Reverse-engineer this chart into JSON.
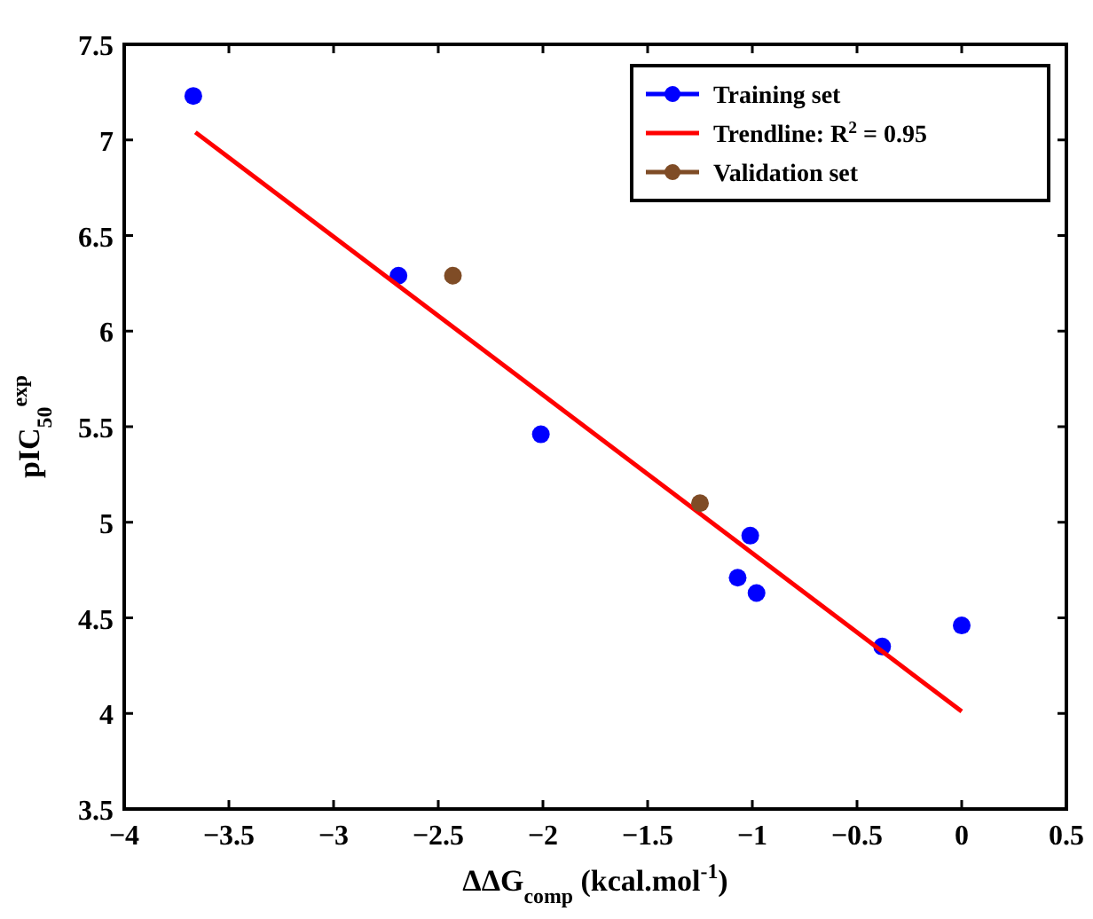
{
  "chart_data": {
    "type": "scatter",
    "xlabel": "ΔΔG$_{comp}$ (kcal.mol$^{-1}$)",
    "ylabel": "pIC$_{50}$$^{exp}$",
    "xlim": [
      -4,
      0.5
    ],
    "ylim": [
      3.5,
      7.5
    ],
    "xticks": [
      {
        "value": -4,
        "label": "−4"
      },
      {
        "value": -3.5,
        "label": "−3.5"
      },
      {
        "value": -3,
        "label": "−3"
      },
      {
        "value": -2.5,
        "label": "−2.5"
      },
      {
        "value": -2,
        "label": "−2"
      },
      {
        "value": -1.5,
        "label": "−1.5"
      },
      {
        "value": -1,
        "label": "−1"
      },
      {
        "value": -0.5,
        "label": "−0.5"
      },
      0,
      0.5
    ],
    "yticks": [
      3.5,
      4,
      4.5,
      5,
      5.5,
      6,
      6.5,
      7,
      7.5
    ],
    "legend": "top right",
    "grid": false,
    "marker": "circle",
    "series": [
      {
        "name": "Training set",
        "color": "#0000ff",
        "x": [
          -3.67,
          -2.69,
          -2.01,
          -1.01,
          -1.07,
          -0.98,
          -0.38,
          0
        ],
        "values": [
          7.23,
          6.29,
          5.46,
          4.93,
          4.71,
          4.63,
          4.35,
          4.46
        ]
      },
      {
        "name": "Trendline: R$^{2}$ = 0.95",
        "type": "line",
        "color": "#ff0000",
        "marker": "none",
        "x": [
          -3.66,
          0
        ],
        "values": [
          7.04,
          4.01
        ]
      },
      {
        "name": "Validation set",
        "color": "#7f4c26",
        "x": [
          -2.43,
          -1.25
        ],
        "values": [
          6.29,
          5.1
        ]
      }
    ]
  }
}
